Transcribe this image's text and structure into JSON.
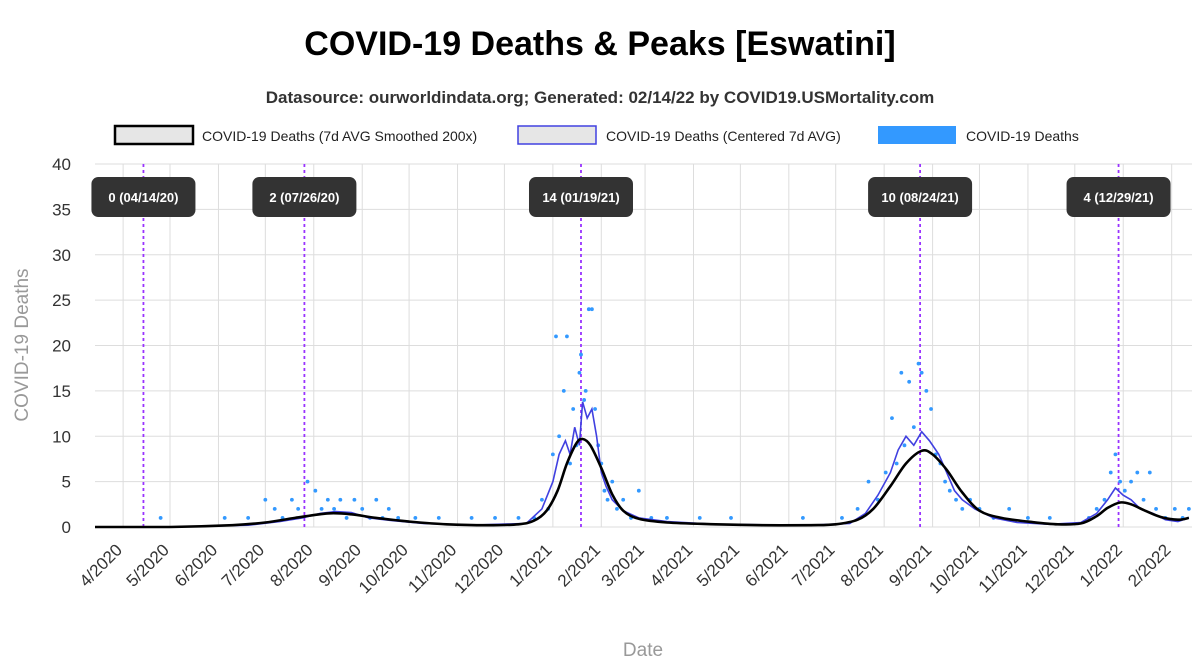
{
  "chart_data": {
    "type": "line",
    "title": "COVID-19 Deaths & Peaks [Eswatini]",
    "subtitle": "Datasource: ourworldindata.org; Generated: 02/14/22 by COVID19.USMortality.com",
    "xlabel": "Date",
    "ylabel": "COVID-19 Deaths",
    "ylim": [
      0,
      40
    ],
    "y_ticks": [
      "0",
      "5",
      "10",
      "15",
      "20",
      "25",
      "30",
      "35",
      "40"
    ],
    "x_range": [
      "2020-03-14",
      "2022-02-14"
    ],
    "x_ticks": [
      {
        "label": "4/2020",
        "date": "2020-04-01"
      },
      {
        "label": "5/2020",
        "date": "2020-05-01"
      },
      {
        "label": "6/2020",
        "date": "2020-06-01"
      },
      {
        "label": "7/2020",
        "date": "2020-07-01"
      },
      {
        "label": "8/2020",
        "date": "2020-08-01"
      },
      {
        "label": "9/2020",
        "date": "2020-09-01"
      },
      {
        "label": "10/2020",
        "date": "2020-10-01"
      },
      {
        "label": "11/2020",
        "date": "2020-11-01"
      },
      {
        "label": "12/2020",
        "date": "2020-12-01"
      },
      {
        "label": "1/2021",
        "date": "2021-01-01"
      },
      {
        "label": "2/2021",
        "date": "2021-02-01"
      },
      {
        "label": "3/2021",
        "date": "2021-03-01"
      },
      {
        "label": "4/2021",
        "date": "2021-04-01"
      },
      {
        "label": "5/2021",
        "date": "2021-05-01"
      },
      {
        "label": "6/2021",
        "date": "2021-06-01"
      },
      {
        "label": "7/2021",
        "date": "2021-07-01"
      },
      {
        "label": "8/2021",
        "date": "2021-08-01"
      },
      {
        "label": "9/2021",
        "date": "2021-09-01"
      },
      {
        "label": "10/2021",
        "date": "2021-10-01"
      },
      {
        "label": "11/2021",
        "date": "2021-11-01"
      },
      {
        "label": "12/2021",
        "date": "2021-12-01"
      },
      {
        "label": "1/2022",
        "date": "2022-01-01"
      },
      {
        "label": "2/2022",
        "date": "2022-02-01"
      }
    ],
    "grid": true,
    "legend_position": "top",
    "legend": [
      {
        "label": "COVID-19 Deaths (7d AVG Smoothed 200x)",
        "style": "smoothed",
        "color": "#000000"
      },
      {
        "label": "COVID-19 Deaths (Centered 7d AVG)",
        "style": "avg",
        "color": "#4040e0"
      },
      {
        "label": "COVID-19 Deaths",
        "style": "points",
        "color": "#3399ff"
      }
    ],
    "peaks": [
      {
        "date": "2020-04-14",
        "label": "0 (04/14/20)"
      },
      {
        "date": "2020-07-26",
        "label": "2 (07/26/20)"
      },
      {
        "date": "2021-01-19",
        "label": "14 (01/19/21)"
      },
      {
        "date": "2021-08-24",
        "label": "10 (08/24/21)"
      },
      {
        "date": "2021-12-29",
        "label": "4 (12/29/21)"
      }
    ],
    "series": [
      {
        "name": "COVID-19 Deaths (7d AVG Smoothed 200x)",
        "points": [
          [
            "2020-03-14",
            0
          ],
          [
            "2020-05-01",
            0
          ],
          [
            "2020-06-10",
            0.2
          ],
          [
            "2020-07-01",
            0.5
          ],
          [
            "2020-07-20",
            1.0
          ],
          [
            "2020-08-10",
            1.5
          ],
          [
            "2020-08-25",
            1.4
          ],
          [
            "2020-09-10",
            1.0
          ],
          [
            "2020-10-01",
            0.6
          ],
          [
            "2020-10-25",
            0.3
          ],
          [
            "2020-11-20",
            0.2
          ],
          [
            "2020-12-10",
            0.3
          ],
          [
            "2020-12-20",
            0.7
          ],
          [
            "2020-12-28",
            1.8
          ],
          [
            "2021-01-04",
            4.0
          ],
          [
            "2021-01-10",
            7.0
          ],
          [
            "2021-01-16",
            9.2
          ],
          [
            "2021-01-20",
            9.7
          ],
          [
            "2021-01-25",
            9.0
          ],
          [
            "2021-02-01",
            6.5
          ],
          [
            "2021-02-08",
            3.6
          ],
          [
            "2021-02-15",
            1.8
          ],
          [
            "2021-02-25",
            0.9
          ],
          [
            "2021-03-15",
            0.5
          ],
          [
            "2021-04-15",
            0.3
          ],
          [
            "2021-05-15",
            0.2
          ],
          [
            "2021-06-15",
            0.2
          ],
          [
            "2021-07-01",
            0.3
          ],
          [
            "2021-07-15",
            0.8
          ],
          [
            "2021-07-25",
            2.0
          ],
          [
            "2021-08-05",
            4.5
          ],
          [
            "2021-08-15",
            7.0
          ],
          [
            "2021-08-25",
            8.4
          ],
          [
            "2021-09-01",
            8.0
          ],
          [
            "2021-09-10",
            6.3
          ],
          [
            "2021-09-20",
            3.8
          ],
          [
            "2021-10-01",
            1.8
          ],
          [
            "2021-10-15",
            1.0
          ],
          [
            "2021-11-01",
            0.6
          ],
          [
            "2021-11-20",
            0.3
          ],
          [
            "2021-12-05",
            0.4
          ],
          [
            "2021-12-15",
            1.2
          ],
          [
            "2021-12-22",
            2.1
          ],
          [
            "2021-12-30",
            2.7
          ],
          [
            "2022-01-06",
            2.5
          ],
          [
            "2022-01-15",
            1.8
          ],
          [
            "2022-01-25",
            1.1
          ],
          [
            "2022-02-05",
            0.8
          ],
          [
            "2022-02-12",
            1.0
          ]
        ]
      },
      {
        "name": "COVID-19 Deaths (Centered 7d AVG)",
        "points": [
          [
            "2020-03-14",
            0
          ],
          [
            "2020-05-01",
            0
          ],
          [
            "2020-06-20",
            0.2
          ],
          [
            "2020-07-10",
            0.6
          ],
          [
            "2020-07-25",
            1.0
          ],
          [
            "2020-08-05",
            1.5
          ],
          [
            "2020-08-15",
            1.7
          ],
          [
            "2020-08-25",
            1.6
          ],
          [
            "2020-09-05",
            1.0
          ],
          [
            "2020-09-20",
            0.7
          ],
          [
            "2020-10-10",
            0.4
          ],
          [
            "2020-11-10",
            0.2
          ],
          [
            "2020-12-15",
            0.4
          ],
          [
            "2020-12-25",
            2.0
          ],
          [
            "2021-01-01",
            5.0
          ],
          [
            "2021-01-05",
            8.0
          ],
          [
            "2021-01-09",
            9.5
          ],
          [
            "2021-01-12",
            8.0
          ],
          [
            "2021-01-15",
            11.0
          ],
          [
            "2021-01-18",
            9.0
          ],
          [
            "2021-01-20",
            13.8
          ],
          [
            "2021-01-23",
            12.0
          ],
          [
            "2021-01-26",
            13.0
          ],
          [
            "2021-01-29",
            10.0
          ],
          [
            "2021-02-01",
            6.0
          ],
          [
            "2021-02-04",
            4.5
          ],
          [
            "2021-02-08",
            3.0
          ],
          [
            "2021-02-15",
            1.8
          ],
          [
            "2021-02-25",
            1.0
          ],
          [
            "2021-03-15",
            0.6
          ],
          [
            "2021-04-15",
            0.3
          ],
          [
            "2021-06-15",
            0.2
          ],
          [
            "2021-07-10",
            0.4
          ],
          [
            "2021-07-20",
            1.5
          ],
          [
            "2021-07-28",
            3.5
          ],
          [
            "2021-08-05",
            6.0
          ],
          [
            "2021-08-10",
            8.5
          ],
          [
            "2021-08-15",
            10.0
          ],
          [
            "2021-08-20",
            9.0
          ],
          [
            "2021-08-25",
            10.5
          ],
          [
            "2021-08-30",
            9.5
          ],
          [
            "2021-09-05",
            8.0
          ],
          [
            "2021-09-10",
            6.0
          ],
          [
            "2021-09-15",
            4.0
          ],
          [
            "2021-09-20",
            3.0
          ],
          [
            "2021-09-28",
            2.0
          ],
          [
            "2021-10-10",
            1.0
          ],
          [
            "2021-10-25",
            0.5
          ],
          [
            "2021-11-15",
            0.3
          ],
          [
            "2021-12-05",
            0.5
          ],
          [
            "2021-12-15",
            1.5
          ],
          [
            "2021-12-22",
            3.0
          ],
          [
            "2021-12-27",
            4.3
          ],
          [
            "2022-01-01",
            3.5
          ],
          [
            "2022-01-06",
            3.0
          ],
          [
            "2022-01-12",
            2.0
          ],
          [
            "2022-01-20",
            1.5
          ],
          [
            "2022-01-28",
            0.8
          ],
          [
            "2022-02-05",
            0.6
          ],
          [
            "2022-02-12",
            1.0
          ]
        ]
      },
      {
        "name": "COVID-19 Deaths",
        "points": [
          [
            "2020-04-25",
            1
          ],
          [
            "2020-06-05",
            1
          ],
          [
            "2020-06-20",
            1
          ],
          [
            "2020-07-01",
            3
          ],
          [
            "2020-07-07",
            2
          ],
          [
            "2020-07-12",
            1
          ],
          [
            "2020-07-18",
            3
          ],
          [
            "2020-07-22",
            2
          ],
          [
            "2020-07-28",
            5
          ],
          [
            "2020-08-02",
            4
          ],
          [
            "2020-08-06",
            2
          ],
          [
            "2020-08-10",
            3
          ],
          [
            "2020-08-14",
            2
          ],
          [
            "2020-08-18",
            3
          ],
          [
            "2020-08-22",
            1
          ],
          [
            "2020-08-27",
            3
          ],
          [
            "2020-09-01",
            2
          ],
          [
            "2020-09-06",
            1
          ],
          [
            "2020-09-10",
            3
          ],
          [
            "2020-09-14",
            1
          ],
          [
            "2020-09-18",
            2
          ],
          [
            "2020-09-24",
            1
          ],
          [
            "2020-10-05",
            1
          ],
          [
            "2020-10-20",
            1
          ],
          [
            "2020-11-10",
            1
          ],
          [
            "2020-11-25",
            1
          ],
          [
            "2020-12-10",
            1
          ],
          [
            "2020-12-20",
            1
          ],
          [
            "2020-12-25",
            3
          ],
          [
            "2020-12-29",
            2
          ],
          [
            "2021-01-01",
            8
          ],
          [
            "2021-01-03",
            21
          ],
          [
            "2021-01-05",
            10
          ],
          [
            "2021-01-08",
            15
          ],
          [
            "2021-01-10",
            21
          ],
          [
            "2021-01-12",
            7
          ],
          [
            "2021-01-14",
            13
          ],
          [
            "2021-01-16",
            9
          ],
          [
            "2021-01-18",
            17
          ],
          [
            "2021-01-19",
            19
          ],
          [
            "2021-01-21",
            14
          ],
          [
            "2021-01-22",
            15
          ],
          [
            "2021-01-24",
            24
          ],
          [
            "2021-01-26",
            24
          ],
          [
            "2021-01-28",
            13
          ],
          [
            "2021-01-30",
            9
          ],
          [
            "2021-02-01",
            7
          ],
          [
            "2021-02-03",
            4
          ],
          [
            "2021-02-05",
            3
          ],
          [
            "2021-02-08",
            5
          ],
          [
            "2021-02-11",
            2
          ],
          [
            "2021-02-15",
            3
          ],
          [
            "2021-02-20",
            1
          ],
          [
            "2021-02-25",
            4
          ],
          [
            "2021-03-05",
            1
          ],
          [
            "2021-03-15",
            1
          ],
          [
            "2021-04-05",
            1
          ],
          [
            "2021-04-25",
            1
          ],
          [
            "2021-06-10",
            1
          ],
          [
            "2021-07-05",
            1
          ],
          [
            "2021-07-15",
            2
          ],
          [
            "2021-07-22",
            5
          ],
          [
            "2021-07-28",
            3
          ],
          [
            "2021-08-02",
            6
          ],
          [
            "2021-08-06",
            12
          ],
          [
            "2021-08-09",
            7
          ],
          [
            "2021-08-12",
            17
          ],
          [
            "2021-08-14",
            9
          ],
          [
            "2021-08-17",
            16
          ],
          [
            "2021-08-20",
            11
          ],
          [
            "2021-08-23",
            18
          ],
          [
            "2021-08-25",
            17
          ],
          [
            "2021-08-28",
            15
          ],
          [
            "2021-08-31",
            13
          ],
          [
            "2021-09-03",
            8
          ],
          [
            "2021-09-06",
            7
          ],
          [
            "2021-09-09",
            5
          ],
          [
            "2021-09-12",
            4
          ],
          [
            "2021-09-16",
            3
          ],
          [
            "2021-09-20",
            2
          ],
          [
            "2021-09-25",
            3
          ],
          [
            "2021-10-01",
            2
          ],
          [
            "2021-10-10",
            1
          ],
          [
            "2021-10-20",
            2
          ],
          [
            "2021-11-01",
            1
          ],
          [
            "2021-11-15",
            1
          ],
          [
            "2021-12-10",
            1
          ],
          [
            "2021-12-15",
            2
          ],
          [
            "2021-12-20",
            3
          ],
          [
            "2021-12-24",
            6
          ],
          [
            "2021-12-27",
            8
          ],
          [
            "2021-12-30",
            5
          ],
          [
            "2022-01-02",
            4
          ],
          [
            "2022-01-06",
            5
          ],
          [
            "2022-01-10",
            6
          ],
          [
            "2022-01-14",
            3
          ],
          [
            "2022-01-18",
            6
          ],
          [
            "2022-01-22",
            2
          ],
          [
            "2022-01-28",
            1
          ],
          [
            "2022-02-03",
            2
          ],
          [
            "2022-02-08",
            1
          ],
          [
            "2022-02-12",
            2
          ]
        ]
      }
    ]
  }
}
